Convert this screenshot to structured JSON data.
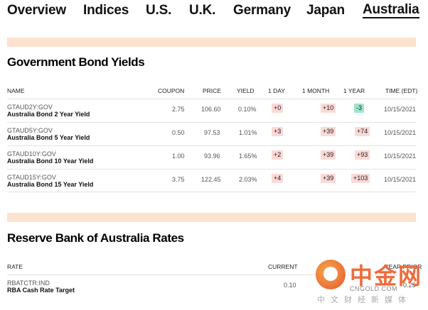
{
  "nav": {
    "items": [
      "Overview",
      "Indices",
      "U.S.",
      "U.K.",
      "Germany",
      "Japan",
      "Australia"
    ],
    "active": "Australia"
  },
  "bonds": {
    "title": "Government Bond Yields",
    "columns": [
      "NAME",
      "COUPON",
      "PRICE",
      "YIELD",
      "1 DAY",
      "1 MONTH",
      "1 YEAR",
      "TIME (EDT)"
    ],
    "rows": [
      {
        "ticker": "GTAUD2Y:GOV",
        "name": "Australia Bond 2 Year Yield",
        "coupon": "2.75",
        "price": "106.60",
        "yield": "0.10%",
        "day": "+0",
        "month": "+10",
        "year": "-3",
        "time": "10/15/2021"
      },
      {
        "ticker": "GTAUD5Y:GOV",
        "name": "Australia Bond 5 Year Yield",
        "coupon": "0.50",
        "price": "97.53",
        "yield": "1.01%",
        "day": "+3",
        "month": "+39",
        "year": "+74",
        "time": "10/15/2021"
      },
      {
        "ticker": "GTAUD10Y:GOV",
        "name": "Australia Bond 10 Year Yield",
        "coupon": "1.00",
        "price": "93.96",
        "yield": "1.65%",
        "day": "+2",
        "month": "+39",
        "year": "+93",
        "time": "10/15/2021"
      },
      {
        "ticker": "GTAUD15Y:GOV",
        "name": "Australia Bond 15 Year Yield",
        "coupon": "3.75",
        "price": "122.45",
        "yield": "2.03%",
        "day": "+4",
        "month": "+39",
        "year": "+103",
        "time": "10/15/2021"
      }
    ]
  },
  "rates": {
    "title": "Reserve Bank of Australia Rates",
    "columns": [
      "RATE",
      "CURRENT",
      "YEAR PRIOR"
    ],
    "rows": [
      {
        "ticker": "RBATCTR:IND",
        "name": "RBA Cash Rate Target",
        "current": "0.10",
        "prior": "0.25"
      }
    ]
  },
  "watermark": {
    "brand": "中金网",
    "site": "CNGOLD.COM",
    "tagline": "中文财经新媒体"
  },
  "colors": {
    "band": "#fde2cf",
    "positive_change_bg": "#fbd9d7",
    "negative_change_bg": "#9ce6cb"
  }
}
